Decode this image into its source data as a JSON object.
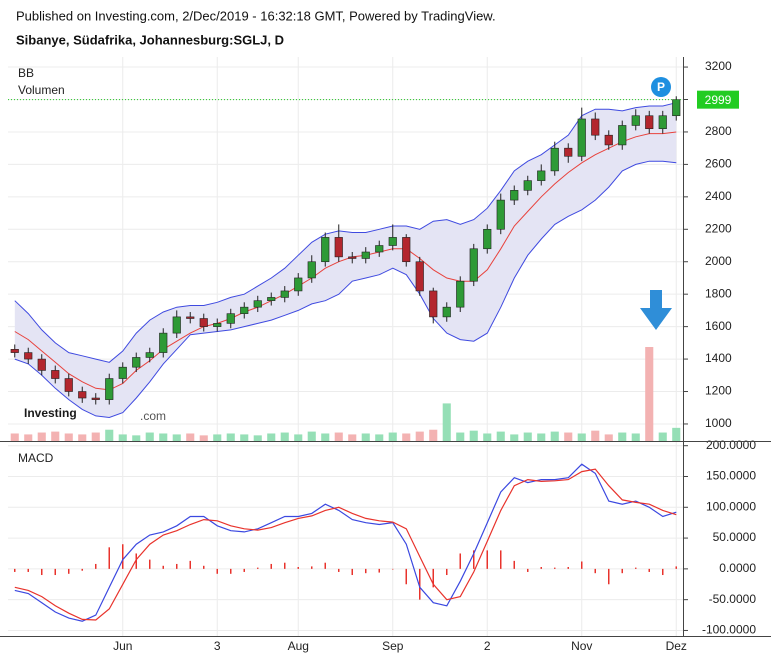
{
  "header": {
    "published": "Published on Investing.com, 2/Dec/2019 - 16:32:18 GMT, Powered by TradingView.",
    "symbol": "Sibanye, Südafrika, Johannesburg:SGLJ, D"
  },
  "chart_data": [
    {
      "type": "candlestick",
      "indicator_labels": [
        "BB",
        "Volumen"
      ],
      "watermark": [
        "Investing",
        ".com"
      ],
      "badge": "P",
      "categories": [
        null,
        null,
        null,
        null,
        null,
        null,
        null,
        null,
        "Jun",
        null,
        null,
        null,
        null,
        null,
        null,
        "3",
        null,
        null,
        null,
        null,
        null,
        "Aug",
        null,
        null,
        null,
        null,
        null,
        null,
        "Sep",
        null,
        null,
        null,
        null,
        null,
        null,
        "2",
        null,
        null,
        null,
        null,
        null,
        null,
        "Nov",
        null,
        null,
        null,
        null,
        null,
        null,
        "Dez"
      ],
      "open": [
        1460,
        1440,
        1400,
        1330,
        1280,
        1200,
        1160,
        1150,
        1280,
        1350,
        1410,
        1440,
        1560,
        1660,
        1650,
        1600,
        1620,
        1680,
        1720,
        1760,
        1780,
        1820,
        1900,
        2000,
        2150,
        2030,
        2020,
        2060,
        2100,
        2150,
        2000,
        1820,
        1660,
        1720,
        1880,
        2080,
        2200,
        2380,
        2440,
        2500,
        2560,
        2700,
        2650,
        2880,
        2780,
        2720,
        2840,
        2900,
        2820,
        2900
      ],
      "high": [
        1490,
        1470,
        1430,
        1360,
        1310,
        1230,
        1190,
        1310,
        1380,
        1440,
        1470,
        1590,
        1700,
        1690,
        1680,
        1650,
        1710,
        1750,
        1790,
        1810,
        1850,
        1930,
        2040,
        2180,
        2230,
        2060,
        2090,
        2130,
        2230,
        2170,
        2030,
        1840,
        1750,
        1910,
        2110,
        2230,
        2420,
        2470,
        2530,
        2600,
        2740,
        2730,
        2950,
        2920,
        2810,
        2870,
        2940,
        2930,
        2930,
        3020
      ],
      "low": [
        1410,
        1370,
        1300,
        1250,
        1170,
        1130,
        1120,
        1120,
        1250,
        1320,
        1380,
        1410,
        1530,
        1620,
        1570,
        1570,
        1590,
        1650,
        1690,
        1730,
        1750,
        1790,
        1870,
        1970,
        2000,
        1990,
        1990,
        2030,
        2070,
        1970,
        1790,
        1620,
        1630,
        1690,
        1850,
        2050,
        2170,
        2350,
        2410,
        2470,
        2530,
        2610,
        2620,
        2750,
        2690,
        2690,
        2810,
        2790,
        2790,
        2870
      ],
      "close": [
        1440,
        1400,
        1330,
        1280,
        1200,
        1160,
        1150,
        1280,
        1350,
        1410,
        1440,
        1560,
        1660,
        1650,
        1600,
        1620,
        1680,
        1720,
        1760,
        1780,
        1820,
        1900,
        2000,
        2150,
        2030,
        2020,
        2060,
        2100,
        2150,
        2000,
        1820,
        1660,
        1720,
        1880,
        2080,
        2200,
        2380,
        2440,
        2500,
        2560,
        2700,
        2650,
        2880,
        2780,
        2720,
        2840,
        2900,
        2820,
        2900,
        2999
      ],
      "bands": {
        "upper": [
          1760,
          1680,
          1580,
          1500,
          1440,
          1420,
          1400,
          1380,
          1450,
          1560,
          1640,
          1690,
          1720,
          1730,
          1730,
          1750,
          1780,
          1800,
          1850,
          1900,
          1960,
          2040,
          2120,
          2170,
          2190,
          2180,
          2180,
          2200,
          2220,
          2220,
          2200,
          2250,
          2260,
          2230,
          2260,
          2330,
          2440,
          2560,
          2620,
          2660,
          2720,
          2780,
          2900,
          2940,
          2940,
          2930,
          2950,
          2960,
          2960,
          2980
        ],
        "middle": [
          1570,
          1520,
          1450,
          1380,
          1310,
          1260,
          1220,
          1210,
          1250,
          1330,
          1390,
          1460,
          1510,
          1560,
          1600,
          1620,
          1650,
          1690,
          1720,
          1760,
          1800,
          1850,
          1900,
          1960,
          2000,
          2030,
          2040,
          2060,
          2080,
          2080,
          2020,
          1950,
          1900,
          1880,
          1880,
          1950,
          2080,
          2220,
          2310,
          2400,
          2480,
          2550,
          2610,
          2660,
          2700,
          2740,
          2770,
          2790,
          2790,
          2800
        ],
        "lower": [
          1400,
          1370,
          1300,
          1220,
          1150,
          1090,
          1050,
          1040,
          1070,
          1160,
          1260,
          1370,
          1460,
          1550,
          1560,
          1570,
          1580,
          1600,
          1620,
          1640,
          1670,
          1700,
          1740,
          1760,
          1800,
          1880,
          1900,
          1920,
          1960,
          1920,
          1800,
          1650,
          1560,
          1520,
          1510,
          1560,
          1720,
          1900,
          2040,
          2140,
          2230,
          2280,
          2320,
          2380,
          2460,
          2560,
          2600,
          2620,
          2620,
          2610
        ],
        "line_color": "#3f4ae0",
        "middle_color": "#e8423c",
        "fill": "#e4e4f4"
      },
      "volume": [
        8,
        7,
        9,
        10,
        8,
        7,
        9,
        12,
        7,
        6,
        9,
        8,
        7,
        8,
        6,
        7,
        8,
        7,
        6,
        8,
        9,
        7,
        10,
        8,
        9,
        7,
        8,
        7,
        9,
        8,
        10,
        12,
        40,
        9,
        11,
        8,
        10,
        7,
        9,
        8,
        10,
        9,
        8,
        11,
        7,
        9,
        8,
        100,
        9,
        14
      ],
      "colors": {
        "up": "#2e9a36",
        "down": "#b3262e",
        "volume_up": "#95dfb6",
        "volume_down": "#f3b2b2",
        "last_price": "#22cc22"
      },
      "last_price": 2999,
      "ylim": [
        895,
        3262
      ],
      "yticks": [
        1000,
        1200,
        1400,
        1600,
        1800,
        2000,
        2200,
        2400,
        2600,
        2800,
        3000,
        3200
      ],
      "grid": true
    },
    {
      "type": "macd",
      "title": "MACD",
      "series": [
        {
          "color": "#3b48e0",
          "values": [
            -35,
            -40,
            -55,
            -70,
            -80,
            -85,
            -75,
            -30,
            15,
            40,
            55,
            60,
            70,
            85,
            85,
            70,
            62,
            60,
            65,
            75,
            85,
            85,
            90,
            105,
            95,
            80,
            75,
            72,
            75,
            40,
            -30,
            -55,
            -60,
            -20,
            25,
            75,
            125,
            148,
            140,
            145,
            145,
            148,
            170,
            155,
            110,
            105,
            110,
            100,
            85,
            92
          ]
        },
        {
          "color": "#e8332c",
          "values": [
            -30,
            -35,
            -45,
            -60,
            -72,
            -82,
            -83,
            -65,
            -25,
            15,
            40,
            55,
            62,
            72,
            80,
            78,
            70,
            65,
            63,
            67,
            75,
            82,
            86,
            95,
            100,
            90,
            82,
            78,
            76,
            65,
            20,
            -25,
            -50,
            -45,
            -5,
            45,
            95,
            135,
            145,
            142,
            143,
            145,
            158,
            162,
            135,
            112,
            108,
            105,
            95,
            88
          ]
        }
      ],
      "histogram": [
        -5,
        -5,
        -10,
        -10,
        -8,
        -3,
        8,
        35,
        40,
        25,
        15,
        5,
        8,
        13,
        5,
        -8,
        -8,
        -5,
        2,
        8,
        10,
        3,
        4,
        10,
        -5,
        -10,
        -7,
        -6,
        -1,
        -25,
        -50,
        -30,
        -10,
        25,
        30,
        30,
        30,
        13,
        -5,
        3,
        2,
        3,
        12,
        -7,
        -25,
        -7,
        2,
        -5,
        -10,
        4
      ],
      "histogram_color": "#e8332c",
      "ylim": [
        -109,
        206
      ],
      "yticks": [
        {
          "value": 200,
          "label": "200.0000"
        },
        {
          "value": 150,
          "label": "150.0000"
        },
        {
          "value": 100,
          "label": "100.0000"
        },
        {
          "value": 50,
          "label": "50.0000"
        },
        {
          "value": 0,
          "label": "0.0000"
        },
        {
          "value": -50,
          "label": "-50.0000"
        },
        {
          "value": -100,
          "label": "-100.0000"
        }
      ],
      "grid": true
    }
  ]
}
